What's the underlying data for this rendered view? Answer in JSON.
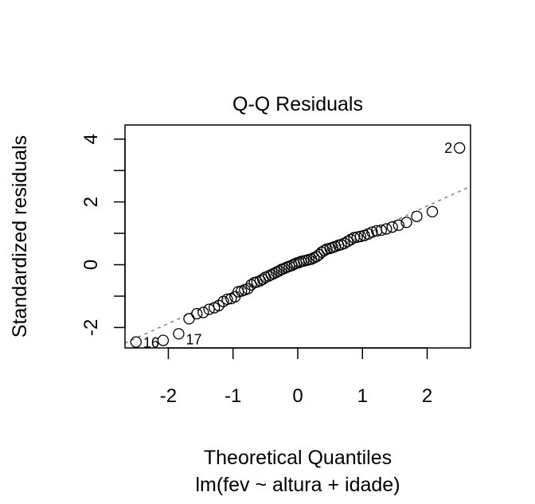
{
  "chart_data": {
    "type": "scatter",
    "title": "Q-Q Residuals",
    "xlabel": "Theoretical Quantiles",
    "subtitle": "lm(fev ~ altura + idade)",
    "ylabel": "Standardized residuals",
    "xlim": [
      -2.67,
      2.67
    ],
    "ylim": [
      -2.65,
      4.45
    ],
    "x_ticks": [
      -2,
      -1,
      0,
      1,
      2
    ],
    "x_tick_labels": [
      "-2",
      "-1",
      "0",
      "1",
      "2"
    ],
    "y_ticks": [
      -2,
      -1,
      0,
      1,
      2,
      3,
      4
    ],
    "y_tick_labels": [
      "-2",
      "",
      "0",
      "",
      "2",
      "",
      "4"
    ],
    "reference_line": {
      "slope": 0.935,
      "intercept": 0.0,
      "style": "dashed",
      "color": "#808080"
    },
    "grid": false,
    "points": {
      "x": [
        -2.5,
        -2.08,
        -1.84,
        -1.68,
        -1.56,
        -1.46,
        -1.37,
        -1.29,
        -1.22,
        -1.15,
        -1.09,
        -1.03,
        -0.97,
        -0.92,
        -0.87,
        -0.82,
        -0.77,
        -0.72,
        -0.67,
        -0.63,
        -0.58,
        -0.54,
        -0.5,
        -0.45,
        -0.41,
        -0.37,
        -0.33,
        -0.29,
        -0.25,
        -0.21,
        -0.17,
        -0.13,
        -0.09,
        -0.05,
        -0.02,
        0.02,
        0.05,
        0.09,
        0.13,
        0.17,
        0.21,
        0.25,
        0.29,
        0.33,
        0.37,
        0.41,
        0.45,
        0.5,
        0.54,
        0.58,
        0.63,
        0.67,
        0.72,
        0.77,
        0.82,
        0.87,
        0.92,
        0.97,
        1.03,
        1.09,
        1.15,
        1.22,
        1.29,
        1.37,
        1.46,
        1.56,
        1.68,
        1.84,
        2.08,
        2.5
      ],
      "y": [
        -2.46,
        -2.41,
        -2.2,
        -1.72,
        -1.56,
        -1.52,
        -1.42,
        -1.37,
        -1.3,
        -1.17,
        -1.1,
        -1.08,
        -1.02,
        -0.86,
        -0.84,
        -0.8,
        -0.76,
        -0.64,
        -0.57,
        -0.55,
        -0.51,
        -0.46,
        -0.4,
        -0.36,
        -0.32,
        -0.28,
        -0.24,
        -0.2,
        -0.15,
        -0.12,
        -0.08,
        -0.05,
        -0.02,
        0.02,
        0.05,
        0.07,
        0.1,
        0.12,
        0.14,
        0.16,
        0.18,
        0.22,
        0.26,
        0.32,
        0.4,
        0.45,
        0.5,
        0.52,
        0.55,
        0.58,
        0.62,
        0.64,
        0.68,
        0.74,
        0.8,
        0.86,
        0.88,
        0.9,
        0.93,
        0.98,
        1.04,
        1.08,
        1.1,
        1.14,
        1.2,
        1.26,
        1.35,
        1.54,
        1.69,
        3.72
      ]
    },
    "point_labels": [
      {
        "index": 69,
        "text": "2"
      },
      {
        "index": 0,
        "text": "16"
      },
      {
        "index": 2,
        "text": "17"
      }
    ]
  }
}
